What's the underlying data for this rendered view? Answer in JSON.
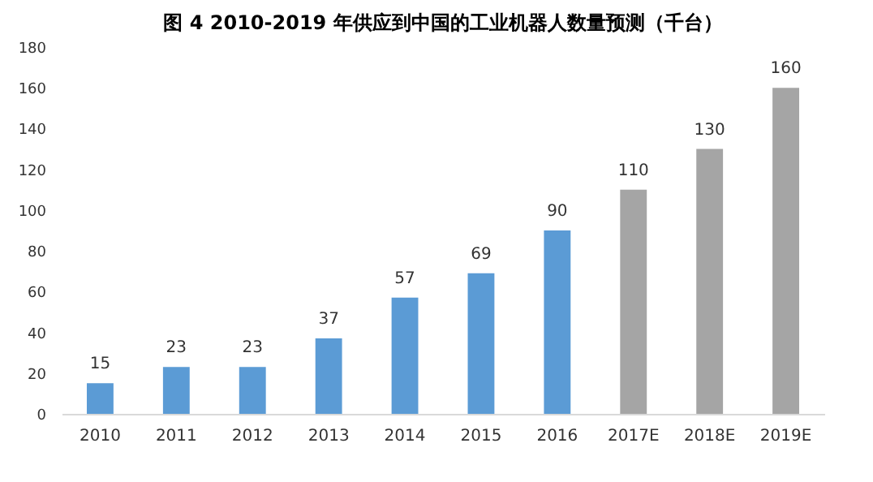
{
  "chart_data": {
    "type": "bar",
    "title": "图 4  2010-2019 年供应到中国的工业机器人数量预测（千台）",
    "categories": [
      "2010",
      "2011",
      "2012",
      "2013",
      "2014",
      "2015",
      "2016",
      "2017E",
      "2018E",
      "2019E"
    ],
    "values": [
      15,
      23,
      23,
      37,
      57,
      69,
      90,
      110,
      130,
      160
    ],
    "colors": [
      "#5b9bd5",
      "#5b9bd5",
      "#5b9bd5",
      "#5b9bd5",
      "#5b9bd5",
      "#5b9bd5",
      "#5b9bd5",
      "#a5a5a5",
      "#a5a5a5",
      "#a5a5a5"
    ],
    "ylim": [
      0,
      180
    ],
    "yticks": [
      0,
      20,
      40,
      60,
      80,
      100,
      120,
      140,
      160,
      180
    ],
    "data_labels": true,
    "grid": false,
    "legend": false
  }
}
